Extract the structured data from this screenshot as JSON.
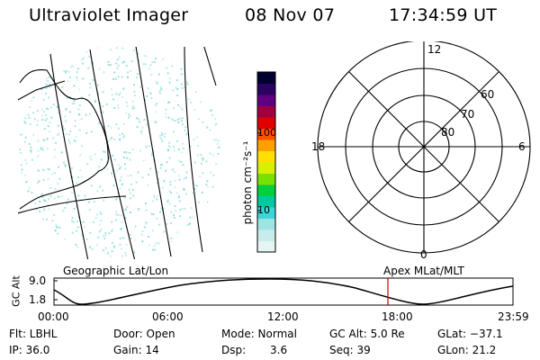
{
  "header": {
    "instrument": "Ultraviolet Imager",
    "date": "08 Nov 07",
    "time": "17:34:59 UT"
  },
  "colorbar": {
    "unit_label": "photon cm⁻²s⁻¹",
    "ticks": [
      {
        "label": "100",
        "value": 100
      },
      {
        "label": "10",
        "value": 10
      }
    ],
    "colors": [
      "#e6f4f4",
      "#c8ecec",
      "#9fe4e4",
      "#3cd6d6",
      "#00c8a0",
      "#00d040",
      "#7ae000",
      "#d8f000",
      "#ffe000",
      "#ffa000",
      "#ff5000",
      "#e00000",
      "#a00040",
      "#600080",
      "#2a0060",
      "#000030"
    ]
  },
  "geo_map": {
    "label": "Geographic Lat/Lon",
    "dot_color": "#7fd6d6"
  },
  "polar_plot": {
    "label": "Apex MLat/MLT",
    "hour_labels": [
      {
        "label": "12",
        "pos": "top"
      },
      {
        "label": "0",
        "pos": "bottom"
      },
      {
        "label": "18",
        "pos": "left"
      },
      {
        "label": "6",
        "pos": "right"
      }
    ],
    "lat_labels": [
      "60",
      "70",
      "80"
    ]
  },
  "altitude_plot": {
    "ylabel": "GC Alt",
    "yticks": [
      "9.0",
      "1.8"
    ],
    "xticks": [
      "00:00",
      "06:00",
      "12:00",
      "18:00",
      "23:59"
    ],
    "marker_time": "17:35",
    "marker_color": "#cc0000"
  },
  "info_table": {
    "row1": [
      "Flt: LBHL",
      "Door: Open",
      "Mode: Normal",
      "GC Alt: 5.0 Re",
      "GLat: −37.1"
    ],
    "row2": [
      "IP: 36.0",
      "Gain: 14",
      "Dsp:",
      "3.6",
      "Seq: 39",
      "GLon:  21.2"
    ]
  }
}
